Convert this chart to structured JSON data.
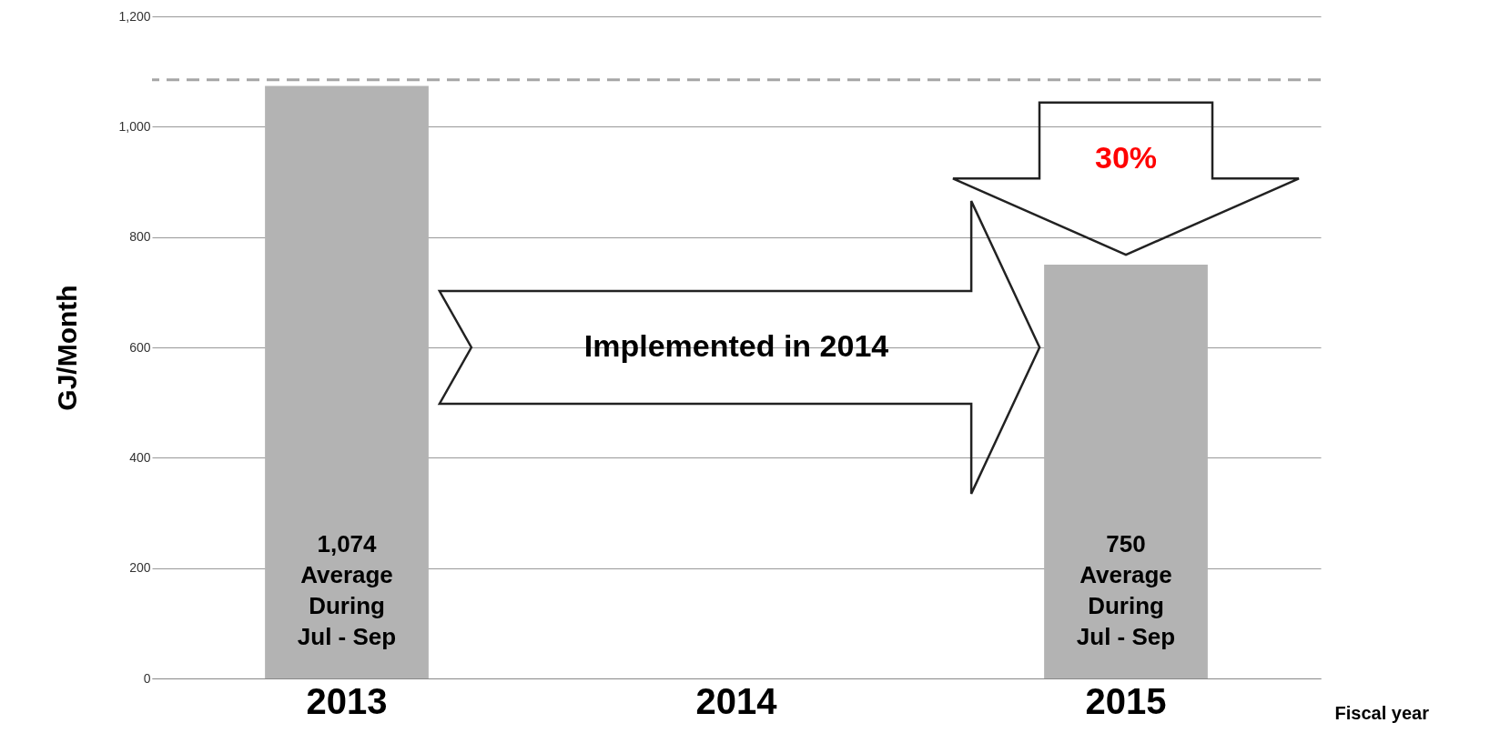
{
  "chart_data": {
    "type": "bar",
    "xlabel": "Fiscal year",
    "ylabel": "GJ/Month",
    "categories": [
      "2013",
      "2014",
      "2015"
    ],
    "values": [
      1074,
      null,
      750
    ],
    "value_labels": [
      "1,074\nAverage\nDuring\nJul - Sep",
      null,
      "750\nAverage\nDuring\nJul - Sep"
    ],
    "color": "#b3b3b3",
    "ylim": [
      0,
      1200
    ],
    "yticks": [
      0,
      200,
      400,
      600,
      800,
      {
        "value": 1000,
        "label": "1,000"
      },
      {
        "value": 1200,
        "label": "1,200"
      }
    ],
    "grid": "y",
    "ref_lines": [
      {
        "axis": "y",
        "value": 1085,
        "color": "#a6a6a6",
        "line_style": "dashed"
      }
    ],
    "annotations": [
      "Implemented in 2014",
      "30%"
    ]
  }
}
